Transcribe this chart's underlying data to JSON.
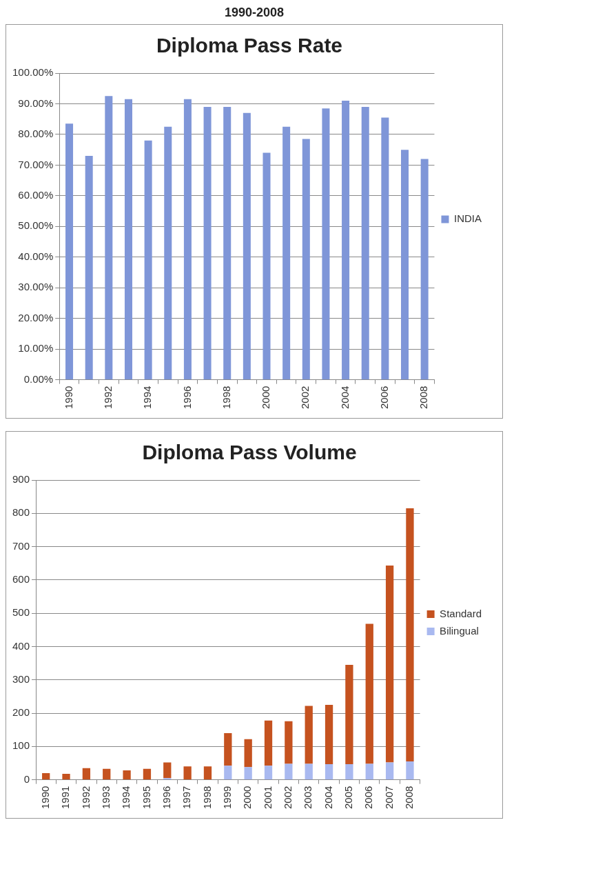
{
  "chart_data": [
    {
      "type": "bar",
      "title": "Diploma Pass Rate",
      "annotations": [
        "1990-2008"
      ],
      "categories": [
        "1990",
        null,
        "1992",
        null,
        "1994",
        null,
        "1996",
        null,
        "1998",
        null,
        "2000",
        null,
        "2002",
        null,
        "2004",
        null,
        "2006",
        null,
        "2008"
      ],
      "series": [
        {
          "name": "INDIA",
          "color": "#7f96d8",
          "values": [
            83.5,
            73,
            92.5,
            91.5,
            78,
            82.5,
            91.5,
            89,
            89,
            87,
            74,
            82.5,
            78.5,
            88.5,
            91,
            89,
            85.5,
            75,
            72
          ]
        }
      ],
      "ylim": [
        0,
        100
      ],
      "yticks": [
        {
          "value": 0,
          "label": "0.00%"
        },
        {
          "value": 10,
          "label": "10.00%"
        },
        {
          "value": 20,
          "label": "20.00%"
        },
        {
          "value": 30,
          "label": "30.00%"
        },
        {
          "value": 40,
          "label": "40.00%"
        },
        {
          "value": 50,
          "label": "50.00%"
        },
        {
          "value": 60,
          "label": "60.00%"
        },
        {
          "value": 70,
          "label": "70.00%"
        },
        {
          "value": 80,
          "label": "80.00%"
        },
        {
          "value": 90,
          "label": "90.00%"
        },
        {
          "value": 100,
          "label": "100.00%"
        }
      ],
      "grid": "y",
      "legend": "right"
    },
    {
      "type": "bar",
      "title": "Diploma Pass Volume",
      "categories": [
        "1990",
        "1991",
        "1992",
        "1993",
        "1994",
        "1995",
        "1996",
        "1997",
        "1998",
        "1999",
        "2000",
        "2001",
        "2002",
        "2003",
        "2004",
        "2005",
        "2006",
        "2007",
        "2008"
      ],
      "stacked": true,
      "series": [
        {
          "name": "Bilingual",
          "color": "#a9b9f0",
          "values": [
            0,
            0,
            0,
            0,
            0,
            0,
            5,
            0,
            0,
            42,
            38,
            42,
            48,
            48,
            47,
            47,
            48,
            52,
            55
          ]
        },
        {
          "name": "Standard",
          "color": "#c5521f",
          "values": [
            20,
            18,
            35,
            33,
            28,
            33,
            47,
            40,
            40,
            98,
            84,
            136,
            128,
            174,
            178,
            298,
            420,
            591,
            760
          ]
        }
      ],
      "ylim": [
        0,
        900
      ],
      "yticks": [
        0,
        100,
        200,
        300,
        400,
        500,
        600,
        700,
        800,
        900
      ],
      "grid": "y",
      "legend": "right"
    }
  ]
}
